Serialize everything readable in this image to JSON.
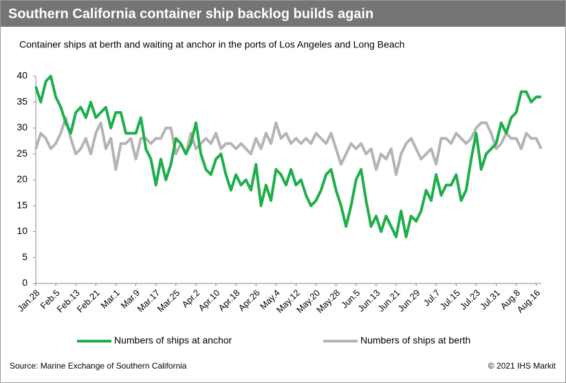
{
  "chart_data": {
    "type": "line",
    "title": "Southern California container ship backlog builds again",
    "subtitle": "Container ships at berth and waiting at anchor in the ports of Los Angeles and Long Beach",
    "source": "Source: Marine Exchange of Southern California",
    "credit": "© 2021 IHS Markit",
    "categories": [
      "Jan.28",
      null,
      null,
      null,
      "Feb.5",
      null,
      null,
      null,
      "Feb.13",
      null,
      null,
      null,
      "Feb.21",
      null,
      null,
      null,
      "Mar.1",
      null,
      null,
      null,
      "Mar.9",
      null,
      null,
      null,
      "Mar.17",
      null,
      null,
      null,
      "Mar.25",
      null,
      null,
      null,
      "Apr.2",
      null,
      null,
      null,
      "Apr.10",
      null,
      null,
      null,
      "Apr.18",
      null,
      null,
      null,
      "Apr.26",
      null,
      null,
      null,
      "May.4",
      null,
      null,
      null,
      "May.12",
      null,
      null,
      null,
      "May.20",
      null,
      null,
      null,
      "May.28",
      null,
      null,
      null,
      "Jun.5",
      null,
      null,
      null,
      "Jun.13",
      null,
      null,
      null,
      "Jun.21",
      null,
      null,
      null,
      "Jun.29",
      null,
      null,
      null,
      "Jul.7",
      null,
      null,
      null,
      "Jul.15",
      null,
      null,
      null,
      "Jul.23",
      null,
      null,
      null,
      "Jul.31",
      null,
      null,
      null,
      "Aug.8",
      null,
      null,
      null,
      "Aug.16",
      null
    ],
    "series": [
      {
        "name": "Numbers of ships at anchor",
        "color": "#1fae4b",
        "values": [
          38,
          35,
          39,
          40,
          36,
          34,
          31,
          29,
          33,
          34,
          32,
          35,
          32,
          33,
          34,
          30,
          33,
          33,
          29,
          29,
          29,
          32,
          26,
          24,
          19,
          24,
          20,
          23,
          28,
          27,
          25,
          27,
          31,
          25,
          22,
          21,
          24,
          25,
          21,
          18,
          21,
          19,
          20,
          18,
          23,
          15,
          19,
          16,
          22,
          21,
          19,
          22,
          19,
          20,
          17,
          15,
          16,
          18,
          21,
          22,
          18,
          15,
          11,
          15,
          20,
          22,
          16,
          11,
          13,
          10,
          13,
          11,
          9,
          14,
          9,
          13,
          12,
          14,
          18,
          16,
          21,
          17,
          19,
          19,
          21,
          16,
          18,
          24,
          29,
          22,
          25,
          26,
          27,
          31,
          29,
          32,
          33,
          37,
          37,
          35,
          36,
          36
        ]
      },
      {
        "name": "Numbers of ships at berth",
        "color": "#b4b4b4",
        "values": [
          26,
          29,
          28,
          26,
          27,
          29,
          32,
          28,
          25,
          26,
          28,
          25,
          29,
          31,
          26,
          28,
          22,
          27,
          27,
          28,
          24,
          28,
          28,
          27,
          28,
          28,
          30,
          30,
          25,
          27,
          25,
          29,
          26,
          27,
          28,
          27,
          29,
          26,
          27,
          27,
          26,
          27,
          26,
          25,
          28,
          26,
          29,
          27,
          31,
          28,
          29,
          27,
          28,
          27,
          28,
          27,
          29,
          28,
          27,
          29,
          26,
          23,
          25,
          27,
          26,
          27,
          25,
          26,
          22,
          25,
          24,
          26,
          21,
          25,
          27,
          28,
          26,
          24,
          25,
          26,
          23,
          28,
          28,
          27,
          29,
          28,
          27,
          28,
          30,
          31,
          31,
          29,
          26,
          27,
          29,
          28,
          28,
          26,
          29,
          28,
          28,
          26
        ]
      }
    ],
    "ylim": [
      0,
      40
    ],
    "yticks": [
      0,
      5,
      10,
      15,
      20,
      25,
      30,
      35,
      40
    ]
  }
}
